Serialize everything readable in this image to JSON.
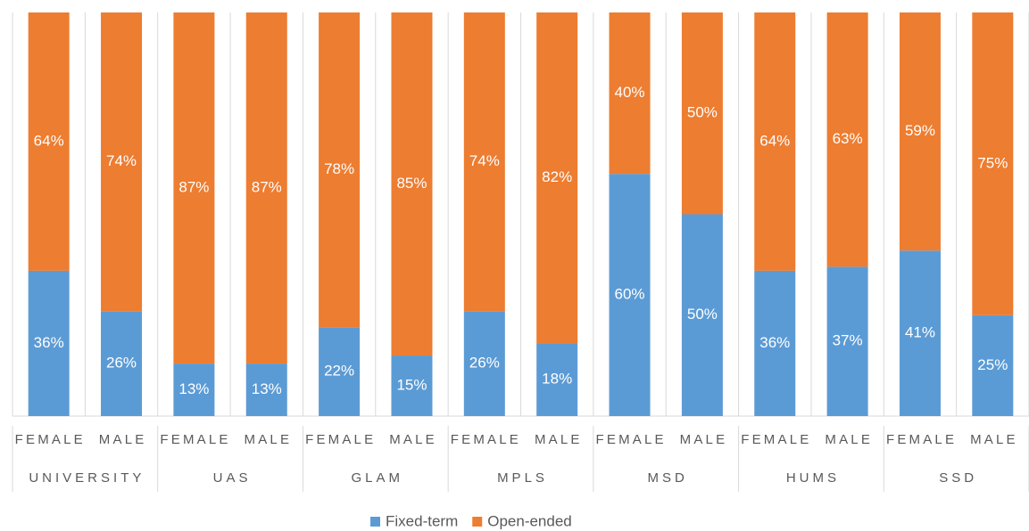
{
  "chart_data": {
    "type": "stacked_bar",
    "categories": [
      "FEMALE",
      "MALE",
      "FEMALE",
      "MALE",
      "FEMALE",
      "MALE",
      "FEMALE",
      "MALE",
      "FEMALE",
      "MALE",
      "FEMALE",
      "MALE",
      "FEMALE",
      "MALE"
    ],
    "groups": [
      "UNIVERSITY",
      "UAS",
      "GLAM",
      "MPLS",
      "MSD",
      "HUMS",
      "SSD"
    ],
    "series": [
      {
        "name": "Fixed-term",
        "color": "#5b9bd5",
        "values": [
          36,
          26,
          13,
          13,
          22,
          15,
          26,
          18,
          60,
          50,
          36,
          37,
          41,
          25
        ],
        "value_labels": [
          "36%",
          "26%",
          "13%",
          "13%",
          "22%",
          "15%",
          "26%",
          "18%",
          "60%",
          "50%",
          "36%",
          "37%",
          "41%",
          "25%"
        ]
      },
      {
        "name": "Open-ended",
        "color": "#ed7d31",
        "values": [
          64,
          74,
          87,
          87,
          78,
          85,
          74,
          82,
          40,
          50,
          64,
          63,
          59,
          75
        ],
        "value_labels": [
          "64%",
          "74%",
          "87%",
          "87%",
          "78%",
          "85%",
          "74%",
          "82%",
          "40%",
          "50%",
          "64%",
          "63%",
          "59%",
          "75%"
        ]
      }
    ],
    "ylim": [
      0,
      100
    ],
    "legend": "bottom"
  }
}
